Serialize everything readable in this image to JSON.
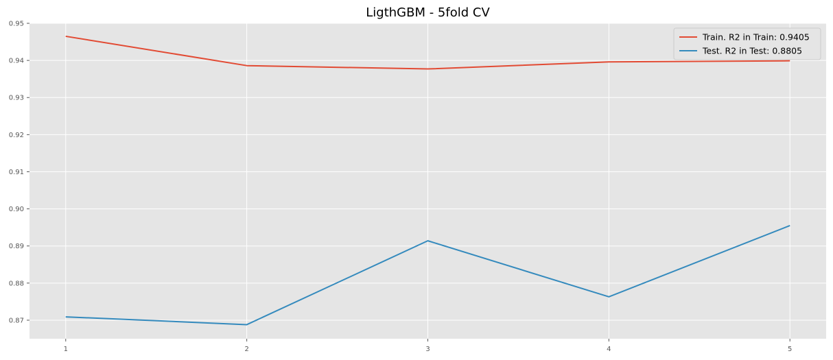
{
  "chart_data": {
    "type": "line",
    "title": "LigthGBM - 5fold CV",
    "xlabel": "",
    "ylabel": "",
    "x": [
      1,
      2,
      3,
      4,
      5
    ],
    "xticks": [
      "1",
      "2",
      "3",
      "4",
      "5"
    ],
    "xlim": [
      0.8,
      5.2
    ],
    "ylim": [
      0.865,
      0.95
    ],
    "yticks": [
      "0.87",
      "0.88",
      "0.89",
      "0.90",
      "0.91",
      "0.92",
      "0.93",
      "0.94",
      "0.95"
    ],
    "grid": true,
    "legend_position": "top-right",
    "series": [
      {
        "name": "Train. R2 in Train: 0.9405",
        "color": "#e24a33",
        "values": [
          0.9465,
          0.9386,
          0.9377,
          0.9396,
          0.9399
        ]
      },
      {
        "name": "Test.  R2 in Test:  0.8805",
        "color": "#348abd",
        "values": [
          0.8709,
          0.8688,
          0.8914,
          0.8763,
          0.8955
        ]
      }
    ]
  }
}
